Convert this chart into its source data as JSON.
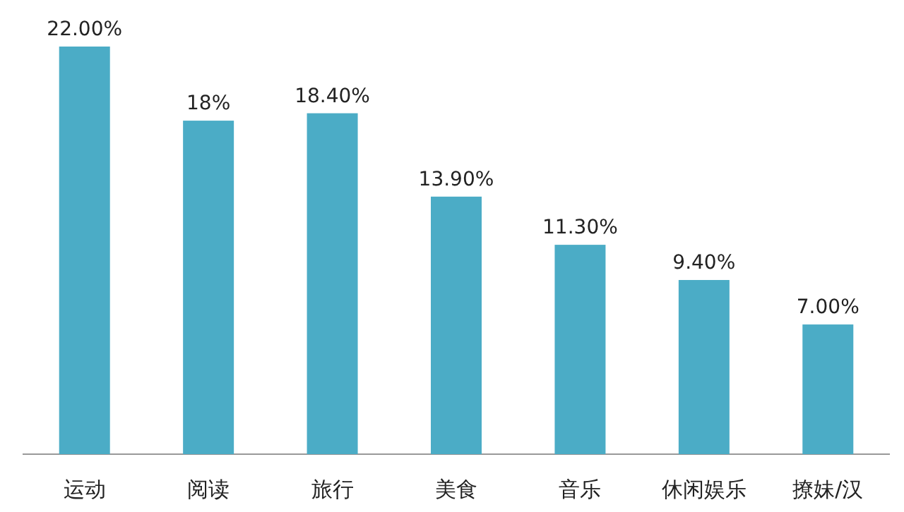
{
  "chart_data": {
    "type": "bar",
    "categories": [
      "运动",
      "阅读",
      "旅行",
      "美食",
      "音乐",
      "休闲娱乐",
      "撩妹/汉"
    ],
    "values": [
      22,
      18,
      18.4,
      13.9,
      11.3,
      9.4,
      7
    ],
    "value_labels": [
      "22.00%",
      "18%",
      "18.40%",
      "13.90%",
      "11.30%",
      "9.40%",
      "7.00%"
    ],
    "color": "#4bacc6"
  }
}
